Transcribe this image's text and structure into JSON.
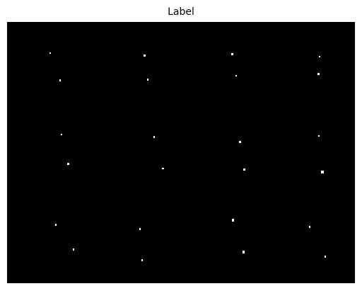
{
  "title": "Label"
}
